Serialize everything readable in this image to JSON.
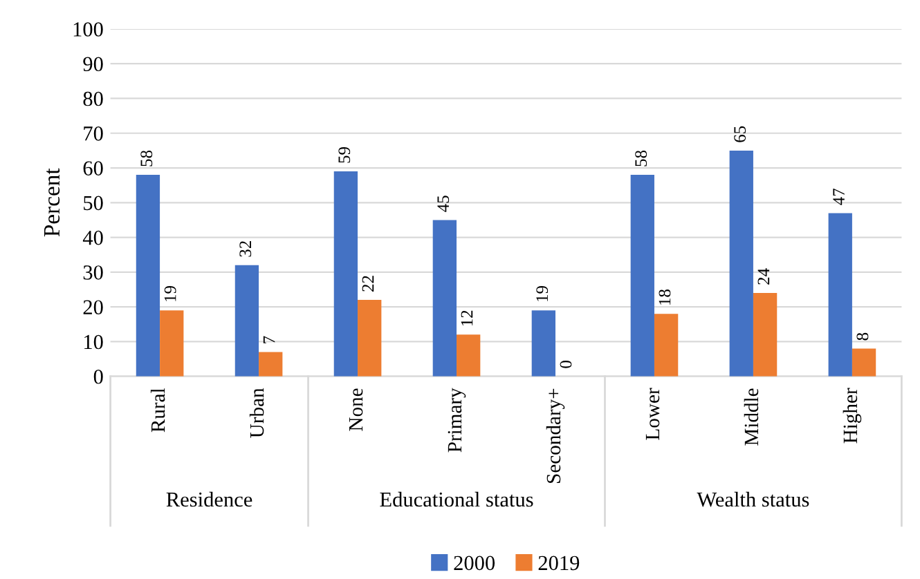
{
  "chart_data": {
    "type": "bar",
    "ylabel": "Percent",
    "categories": [
      "Rural",
      "Urban",
      "None",
      "Primary",
      "Secondary+",
      "Lower",
      "Middle",
      "Higher"
    ],
    "series": [
      {
        "name": "2000",
        "color": "#4472c4",
        "values": [
          58,
          32,
          59,
          45,
          19,
          58,
          65,
          47
        ]
      },
      {
        "name": "2019",
        "color": "#ed7d31",
        "values": [
          19,
          7,
          22,
          12,
          0,
          18,
          24,
          8
        ]
      }
    ],
    "ylim": [
      0,
      100
    ],
    "yticks": [
      0,
      10,
      20,
      30,
      40,
      50,
      60,
      70,
      80,
      90,
      100
    ],
    "grid": "y",
    "legend": "bottom",
    "data_labels": true,
    "annotations": [
      "Residence",
      "Educational status",
      "Wealth status"
    ]
  }
}
